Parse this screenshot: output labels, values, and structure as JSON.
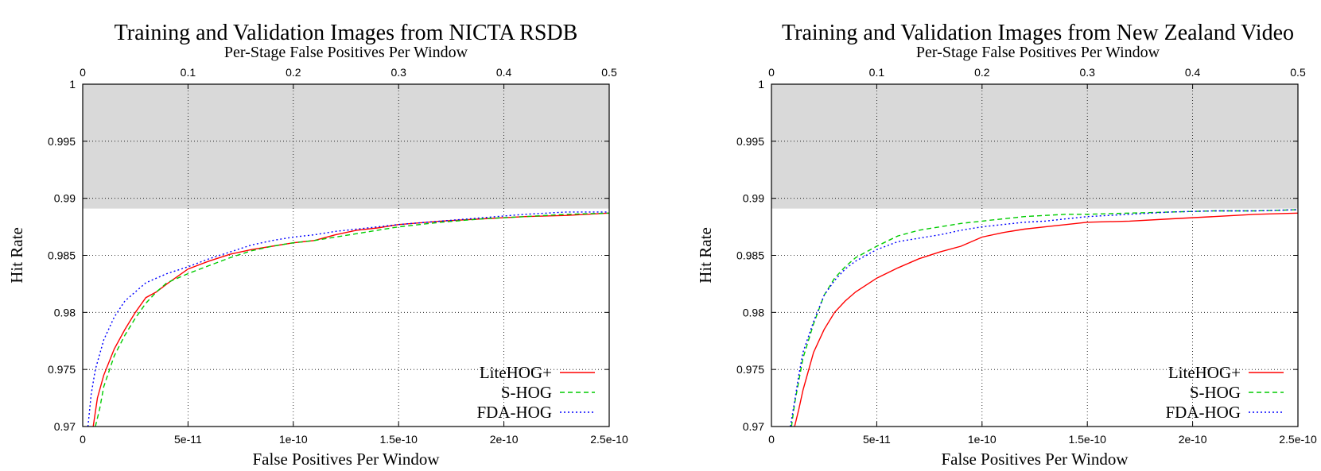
{
  "chart_data": [
    {
      "type": "line",
      "title": "Training and Validation Images from NICTA RSDB",
      "x2label": "Per-Stage False Positives Per Window",
      "xlabel": "False Positives Per Window",
      "ylabel": "Hit Rate",
      "xlim": [
        0,
        2.5e-10
      ],
      "ylim": [
        0.97,
        1.0
      ],
      "x2lim": [
        0,
        0.5
      ],
      "xticks": [
        "0",
        "5e-11",
        "1e-10",
        "1.5e-10",
        "2e-10",
        "2.5e-10"
      ],
      "x2ticks": [
        "0",
        "0.1",
        "0.2",
        "0.3",
        "0.4",
        "0.5"
      ],
      "yticks": [
        "0.97",
        "0.975",
        "0.98",
        "0.985",
        "0.99",
        "0.995",
        "1"
      ],
      "grid": true,
      "legend_position": "bottom-right",
      "shaded_region": {
        "y_from": 0.9891,
        "y_to": 1.0,
        "color": "#d9d9d9"
      },
      "series": [
        {
          "name": "LiteHOG+",
          "color": "#ff0000",
          "dash": "solid",
          "x": [
            5e-12,
            7e-12,
            1e-11,
            1.5e-11,
            2e-11,
            2.5e-11,
            3e-11,
            3.5e-11,
            4e-11,
            5e-11,
            6e-11,
            7e-11,
            8e-11,
            9e-11,
            1e-10,
            1.1e-10,
            1.2e-10,
            1.3e-10,
            1.4e-10,
            1.5e-10,
            1.7e-10,
            1.9e-10,
            2.1e-10,
            2.3e-10,
            2.5e-10
          ],
          "y": [
            0.97,
            0.9725,
            0.9745,
            0.9768,
            0.9785,
            0.98,
            0.9813,
            0.9818,
            0.9825,
            0.9838,
            0.9845,
            0.9851,
            0.9855,
            0.9858,
            0.9861,
            0.9863,
            0.9868,
            0.9872,
            0.9874,
            0.9877,
            0.988,
            0.9882,
            0.9884,
            0.9885,
            0.9887
          ]
        },
        {
          "name": "S-HOG",
          "color": "#00cc00",
          "dash": "dashed",
          "x": [
            6e-12,
            8e-12,
            1e-11,
            1.5e-11,
            2e-11,
            2.5e-11,
            3e-11,
            3.5e-11,
            4e-11,
            5e-11,
            6e-11,
            7e-11,
            8e-11,
            9e-11,
            1e-10,
            1.1e-10,
            1.2e-10,
            1.3e-10,
            1.4e-10,
            1.5e-10,
            1.7e-10,
            1.9e-10,
            2.1e-10,
            2.3e-10,
            2.5e-10
          ],
          "y": [
            0.97,
            0.9715,
            0.9735,
            0.9762,
            0.978,
            0.9795,
            0.9808,
            0.9818,
            0.9826,
            0.9834,
            0.9841,
            0.9848,
            0.9854,
            0.9858,
            0.9861,
            0.9863,
            0.9866,
            0.9869,
            0.9872,
            0.9875,
            0.9879,
            0.9882,
            0.9884,
            0.9886,
            0.9887
          ]
        },
        {
          "name": "FDA-HOG",
          "color": "#0000ff",
          "dash": "dotted",
          "x": [
            2.5e-12,
            4e-12,
            6e-12,
            1e-11,
            1.5e-11,
            2e-11,
            2.5e-11,
            3e-11,
            3.5e-11,
            4e-11,
            5e-11,
            6e-11,
            7e-11,
            8e-11,
            9e-11,
            1e-10,
            1.1e-10,
            1.2e-10,
            1.3e-10,
            1.4e-10,
            1.5e-10,
            1.7e-10,
            1.9e-10,
            2.1e-10,
            2.3e-10,
            2.5e-10
          ],
          "y": [
            0.97,
            0.9728,
            0.975,
            0.9776,
            0.9796,
            0.981,
            0.9818,
            0.9826,
            0.983,
            0.9834,
            0.984,
            0.9847,
            0.9853,
            0.9859,
            0.9863,
            0.9866,
            0.9868,
            0.9871,
            0.9873,
            0.9875,
            0.9877,
            0.988,
            0.9883,
            0.9886,
            0.9888,
            0.9888
          ]
        }
      ]
    },
    {
      "type": "line",
      "title": "Training and Validation Images from New Zealand Video",
      "x2label": "Per-Stage False Positives Per Window",
      "xlabel": "False Positives Per Window",
      "ylabel": "Hit Rate",
      "xlim": [
        0,
        2.5e-10
      ],
      "ylim": [
        0.97,
        1.0
      ],
      "x2lim": [
        0,
        0.5
      ],
      "xticks": [
        "0",
        "5e-11",
        "1e-10",
        "1.5e-10",
        "2e-10",
        "2.5e-10"
      ],
      "x2ticks": [
        "0",
        "0.1",
        "0.2",
        "0.3",
        "0.4",
        "0.5"
      ],
      "yticks": [
        "0.97",
        "0.975",
        "0.98",
        "0.985",
        "0.99",
        "0.995",
        "1"
      ],
      "grid": true,
      "legend_position": "bottom-right",
      "shaded_region": {
        "y_from": 0.9891,
        "y_to": 1.0,
        "color": "#d9d9d9"
      },
      "series": [
        {
          "name": "LiteHOG+",
          "color": "#ff0000",
          "dash": "solid",
          "x": [
            1.1e-11,
            1.3e-11,
            1.5e-11,
            2e-11,
            2.5e-11,
            3e-11,
            3.5e-11,
            4e-11,
            5e-11,
            6e-11,
            7e-11,
            8e-11,
            9e-11,
            1e-10,
            1.1e-10,
            1.2e-10,
            1.3e-10,
            1.4e-10,
            1.5e-10,
            1.7e-10,
            1.9e-10,
            2.1e-10,
            2.3e-10,
            2.5e-10
          ],
          "y": [
            0.97,
            0.9715,
            0.9732,
            0.9765,
            0.9785,
            0.98,
            0.981,
            0.9818,
            0.983,
            0.9839,
            0.9847,
            0.9853,
            0.9858,
            0.9866,
            0.987,
            0.9873,
            0.9875,
            0.9877,
            0.9879,
            0.988,
            0.9882,
            0.9884,
            0.9886,
            0.9887
          ]
        },
        {
          "name": "S-HOG",
          "color": "#00cc00",
          "dash": "dashed",
          "x": [
            9.5e-12,
            1.1e-11,
            1.3e-11,
            1.5e-11,
            2e-11,
            2.5e-11,
            3e-11,
            3.5e-11,
            4e-11,
            5e-11,
            6e-11,
            7e-11,
            8e-11,
            9e-11,
            1e-10,
            1.1e-10,
            1.2e-10,
            1.3e-10,
            1.4e-10,
            1.5e-10,
            1.7e-10,
            1.9e-10,
            2.1e-10,
            2.3e-10,
            2.5e-10
          ],
          "y": [
            0.97,
            0.972,
            0.974,
            0.976,
            0.979,
            0.9815,
            0.983,
            0.984,
            0.9848,
            0.9858,
            0.9867,
            0.9872,
            0.9875,
            0.9878,
            0.988,
            0.9882,
            0.9884,
            0.9885,
            0.9886,
            0.9886,
            0.9887,
            0.9888,
            0.9889,
            0.9889,
            0.989
          ]
        },
        {
          "name": "FDA-HOG",
          "color": "#0000ff",
          "dash": "dotted",
          "x": [
            9e-12,
            1.1e-11,
            1.3e-11,
            1.5e-11,
            2e-11,
            2.5e-11,
            3e-11,
            3.5e-11,
            4e-11,
            5e-11,
            6e-11,
            7e-11,
            8e-11,
            9e-11,
            1e-10,
            1.1e-10,
            1.2e-10,
            1.3e-10,
            1.4e-10,
            1.5e-10,
            1.7e-10,
            1.9e-10,
            2.1e-10,
            2.3e-10,
            2.5e-10
          ],
          "y": [
            0.97,
            0.9722,
            0.9745,
            0.9765,
            0.9792,
            0.9815,
            0.9828,
            0.9838,
            0.9845,
            0.9855,
            0.9862,
            0.9865,
            0.9868,
            0.9872,
            0.9875,
            0.9877,
            0.9879,
            0.988,
            0.9882,
            0.9884,
            0.9886,
            0.9888,
            0.9889,
            0.9889,
            0.989
          ]
        }
      ]
    }
  ]
}
